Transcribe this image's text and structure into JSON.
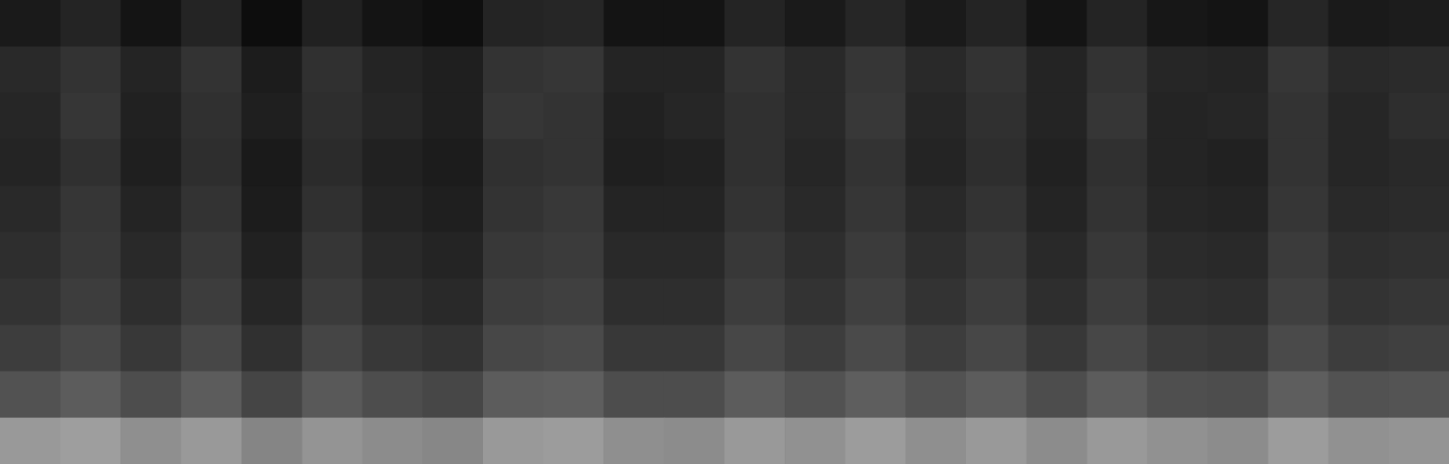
{
  "chart_data": {
    "type": "heatmap",
    "tick_labels": false,
    "color": "#ffffff",
    "zlim": [
      0,
      100
    ],
    "cells": [
      [
        10,
        14,
        8,
        14,
        5,
        13,
        8,
        6,
        14,
        15,
        8,
        8,
        14,
        10,
        15,
        10,
        14,
        8,
        14,
        9,
        8,
        15,
        10,
        11
      ],
      [
        16,
        20,
        14,
        20,
        11,
        19,
        14,
        12,
        20,
        21,
        14,
        14,
        20,
        16,
        21,
        16,
        20,
        14,
        20,
        15,
        14,
        21,
        16,
        17
      ],
      [
        15,
        21,
        13,
        19,
        12,
        18,
        15,
        12,
        21,
        20,
        13,
        15,
        19,
        16,
        22,
        15,
        19,
        14,
        21,
        14,
        15,
        20,
        15,
        18
      ],
      [
        14,
        19,
        12,
        18,
        10,
        17,
        13,
        11,
        19,
        20,
        12,
        13,
        19,
        15,
        20,
        14,
        18,
        13,
        19,
        14,
        13,
        20,
        15,
        16
      ],
      [
        16,
        21,
        14,
        20,
        11,
        19,
        14,
        12,
        20,
        22,
        14,
        14,
        20,
        16,
        21,
        16,
        20,
        14,
        20,
        15,
        14,
        21,
        16,
        17
      ],
      [
        18,
        22,
        16,
        22,
        13,
        21,
        16,
        14,
        22,
        23,
        16,
        16,
        22,
        18,
        23,
        18,
        22,
        16,
        22,
        17,
        16,
        23,
        18,
        19
      ],
      [
        20,
        24,
        18,
        24,
        15,
        23,
        18,
        16,
        24,
        25,
        18,
        18,
        24,
        20,
        25,
        20,
        24,
        18,
        24,
        19,
        18,
        25,
        20,
        21
      ],
      [
        24,
        28,
        22,
        28,
        19,
        27,
        22,
        20,
        28,
        29,
        22,
        22,
        28,
        24,
        29,
        24,
        28,
        22,
        28,
        23,
        22,
        29,
        24,
        25
      ],
      [
        32,
        36,
        30,
        36,
        27,
        35,
        30,
        28,
        36,
        37,
        30,
        30,
        36,
        32,
        37,
        32,
        36,
        30,
        36,
        31,
        30,
        37,
        32,
        33
      ],
      [
        60,
        62,
        56,
        60,
        52,
        58,
        55,
        53,
        60,
        61,
        56,
        55,
        60,
        57,
        61,
        56,
        60,
        55,
        60,
        57,
        55,
        61,
        57,
        58
      ]
    ]
  }
}
